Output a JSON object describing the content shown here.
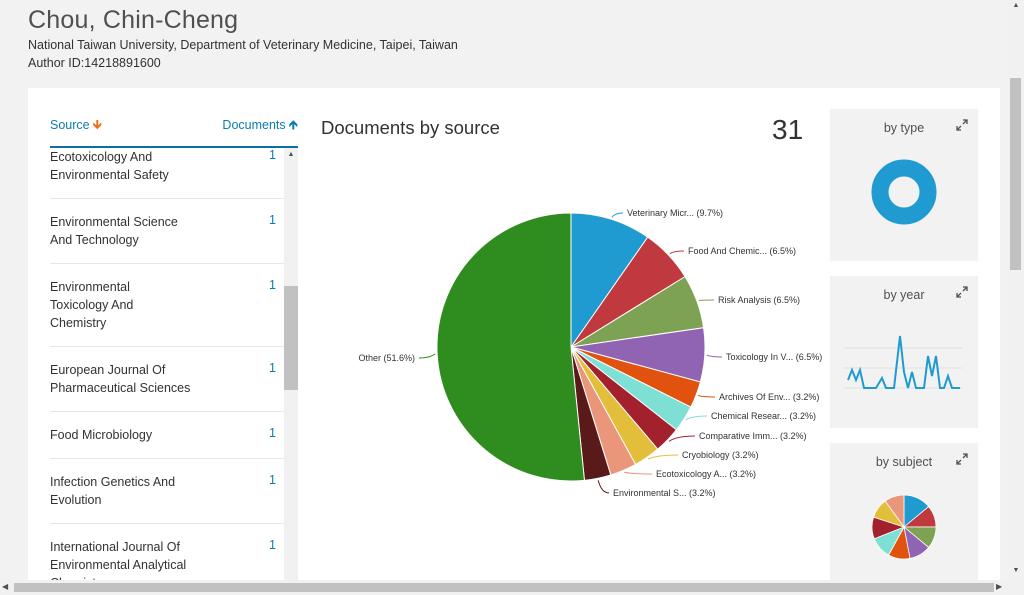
{
  "author": {
    "name": "Chou, Chin-Cheng",
    "affiliation": "National Taiwan University, Department of Veterinary Medicine, Taipei, Taiwan",
    "author_id": "Author ID:14218891600"
  },
  "list": {
    "sort_source_label": "Source",
    "sort_documents_label": "Documents",
    "rows": [
      {
        "lines": [
          "Ecotoxicology And",
          "Environmental Safety"
        ],
        "count": "1"
      },
      {
        "lines": [
          "Environmental Science",
          "And Technology"
        ],
        "count": "1"
      },
      {
        "lines": [
          "Environmental",
          "Toxicology And",
          "Chemistry"
        ],
        "count": "1"
      },
      {
        "lines": [
          "European Journal Of",
          "Pharmaceutical Sciences"
        ],
        "count": "1"
      },
      {
        "lines": [
          "Food Microbiology"
        ],
        "count": "1"
      },
      {
        "lines": [
          "Infection Genetics And",
          "Evolution"
        ],
        "count": "1"
      },
      {
        "lines": [
          "International Journal Of",
          "Environmental Analytical",
          "Chemistry"
        ],
        "count": "1"
      }
    ]
  },
  "chart_title": "Documents by source",
  "total_documents": "31",
  "chart_data": {
    "type": "pie",
    "title": "Documents by source",
    "slices": [
      {
        "label": "Veterinary Micr... (9.7%)",
        "value": 9.7,
        "color": "#1f9bd1"
      },
      {
        "label": "Food And Chemic... (6.5%)",
        "value": 6.5,
        "color": "#c0393f"
      },
      {
        "label": "Risk Analysis (6.5%)",
        "value": 6.5,
        "color": "#7ea254"
      },
      {
        "label": "Toxicology In V... (6.5%)",
        "value": 6.5,
        "color": "#9063b3"
      },
      {
        "label": "Archives Of Env... (3.2%)",
        "value": 3.2,
        "color": "#e0520d"
      },
      {
        "label": "Chemical Resear... (3.2%)",
        "value": 3.2,
        "color": "#7ee0d4"
      },
      {
        "label": "Comparative Imm... (3.2%)",
        "value": 3.2,
        "color": "#a3202d"
      },
      {
        "label": "Cryobiology (3.2%)",
        "value": 3.2,
        "color": "#e2be3a"
      },
      {
        "label": "Ecotoxicology A... (3.2%)",
        "value": 3.2,
        "color": "#e9967b"
      },
      {
        "label": "Environmental S... (3.2%)",
        "value": 3.2,
        "color": "#5b1a1a"
      },
      {
        "label": "Other (51.6%)",
        "value": 51.6,
        "color": "#2f8c1f"
      }
    ]
  },
  "mini_cards": {
    "by_type": {
      "title": "by type",
      "color": "#1f9bd1"
    },
    "by_year": {
      "title": "by year",
      "color": "#1f9bd1"
    },
    "by_subject": {
      "title": "by subject"
    }
  },
  "icons": {
    "sort_source": "arrow-down-icon",
    "sort_documents": "arrow-up-icon",
    "expand": "expand-icon"
  }
}
